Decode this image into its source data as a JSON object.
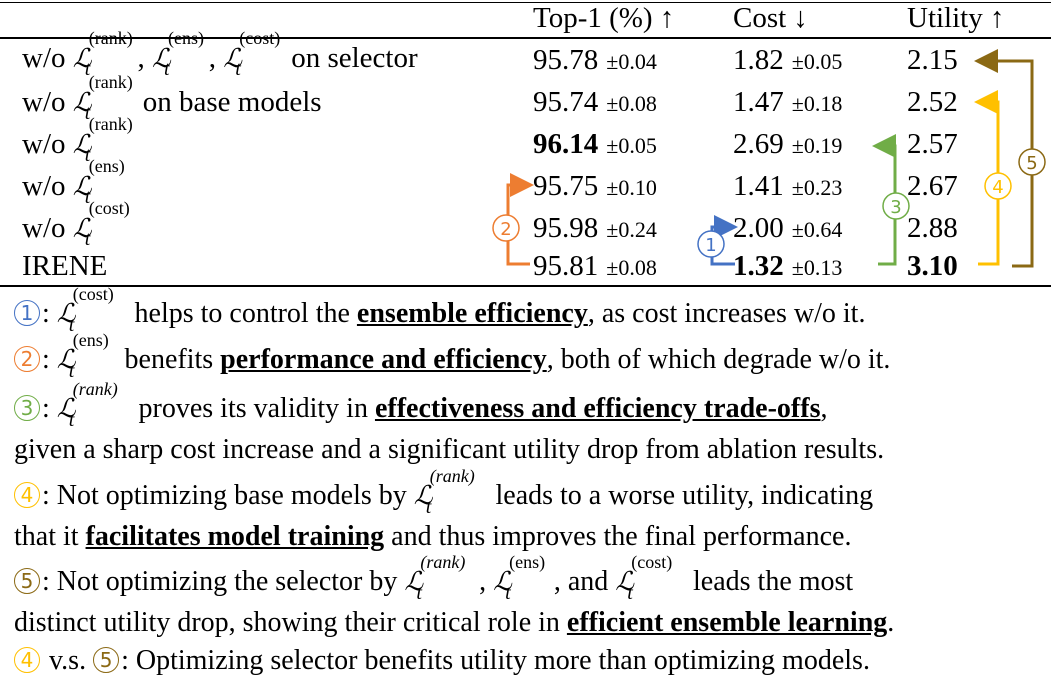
{
  "table": {
    "headers": [
      "Top-1 (%) ↑",
      "Cost ↓",
      "Utility ↑"
    ],
    "rows": [
      {
        "label_prefix": "w/o ",
        "label_terms": [
          "(rank)",
          "(ens)",
          "(cost)"
        ],
        "label_suffix": " on selector",
        "top1": "95.78",
        "top1_pm": "±0.04",
        "cost": "1.82",
        "cost_pm": "±0.05",
        "utility": "2.15"
      },
      {
        "label_prefix": "w/o ",
        "label_terms": [
          "(rank)"
        ],
        "label_suffix": " on base models",
        "top1": "95.74",
        "top1_pm": "±0.08",
        "cost": "1.47",
        "cost_pm": "±0.18",
        "utility": "2.52"
      },
      {
        "label_prefix": "w/o ",
        "label_terms": [
          "(rank)"
        ],
        "label_suffix": "",
        "top1": "96.14",
        "top1_pm": "±0.05",
        "cost": "2.69",
        "cost_pm": "±0.19",
        "utility": "2.57"
      },
      {
        "label_prefix": "w/o ",
        "label_terms": [
          "(ens)"
        ],
        "label_suffix": "",
        "top1": "95.75",
        "top1_pm": "±0.10",
        "cost": "1.41",
        "cost_pm": "±0.23",
        "utility": "2.67"
      },
      {
        "label_prefix": "w/o ",
        "label_terms": [
          "(cost)"
        ],
        "label_suffix": "",
        "top1": "95.98",
        "top1_pm": "±0.24",
        "cost": "2.00",
        "cost_pm": "±0.64",
        "utility": "2.88"
      },
      {
        "label_prefix": "IRENE",
        "label_terms": [],
        "label_suffix": "",
        "top1": "95.81",
        "top1_pm": "±0.08",
        "cost": "1.32",
        "cost_pm": "±0.13",
        "utility": "3.10"
      }
    ],
    "markers": [
      "1",
      "2",
      "3",
      "4",
      "5"
    ]
  },
  "notes": {
    "n1": {
      "marker": "1",
      "sup": "(cost)",
      "pre": " helps to control the ",
      "emph": "ensemble efficiency",
      "post": ", as cost increases w/o it."
    },
    "n2": {
      "marker": "2",
      "sup": "(ens)",
      "pre": " benefits ",
      "emph": "performance and efficiency",
      "post": ", both of which degrade w/o it."
    },
    "n3": {
      "marker": "3",
      "sup": "(rank)",
      "pre": " proves its validity in ",
      "emph": "effectiveness and efficiency trade-offs",
      "post": ",",
      "line2": "given a sharp cost increase and a significant utility drop from ablation results."
    },
    "n4": {
      "marker": "4",
      "pre": ": Not optimizing base models by ",
      "sup": "(rank)",
      "post": " leads to a worse utility, indicating",
      "line2_pre": "that it ",
      "line2_emph": "facilitates model training",
      "line2_post": " and thus improves the final performance."
    },
    "n5": {
      "marker": "5",
      "pre": ": Not optimizing the selector by ",
      "sup1": "(rank)",
      "sep1": ", ",
      "sup2": "(ens)",
      "sep2": ", and ",
      "sup3": "(cost)",
      "post": " leads the most",
      "line2_pre": "distinct utility drop, showing their critical role in ",
      "line2_emph": "efficient ensemble learning",
      "line2_post": "."
    },
    "n6": {
      "m1": "4",
      "vs": " v.s. ",
      "m2": "5",
      "text": ": Optimizing selector benefits utility more than optimizing models."
    }
  },
  "colors": {
    "c1": "#4472c4",
    "c2": "#ed7d31",
    "c3": "#70ad47",
    "c4": "#ffc000",
    "c5": "#8b6914"
  }
}
